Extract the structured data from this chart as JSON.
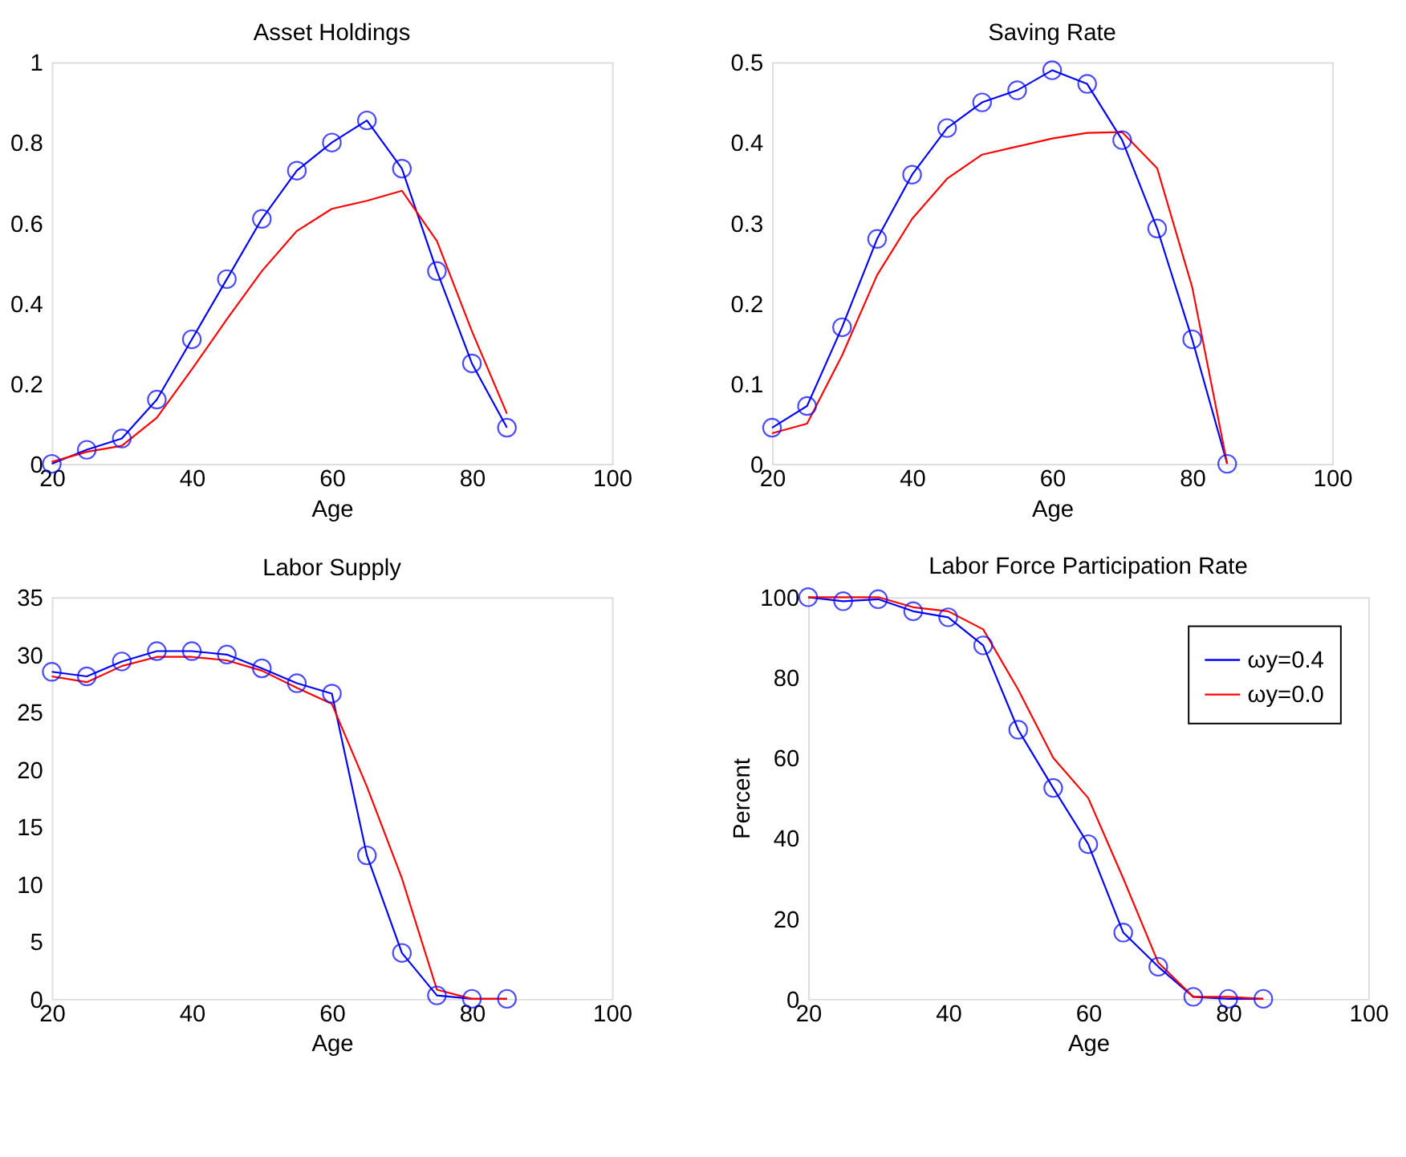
{
  "chart_data": [
    {
      "type": "line",
      "title": "Asset Holdings",
      "xlabel": "Age",
      "x": [
        20,
        25,
        30,
        35,
        40,
        45,
        50,
        55,
        60,
        65,
        70,
        75,
        80,
        85
      ],
      "xlim": [
        20,
        100
      ],
      "xticks": [
        20,
        40,
        60,
        80,
        100
      ],
      "ylim": [
        0,
        1
      ],
      "yticks": [
        0,
        0.2,
        0.4,
        0.6,
        0.8,
        1
      ],
      "grid": false,
      "legend": false,
      "series": [
        {
          "color": "#0000ff",
          "marker": "circle",
          "values": [
            0,
            0.035,
            0.063,
            0.16,
            0.31,
            0.46,
            0.61,
            0.73,
            0.8,
            0.855,
            0.735,
            0.48,
            0.25,
            0.09
          ]
        },
        {
          "color": "#ff0000",
          "marker": "none",
          "values": [
            0.005,
            0.03,
            0.045,
            0.115,
            0.235,
            0.36,
            0.48,
            0.58,
            0.635,
            0.655,
            0.68,
            0.555,
            0.33,
            0.125
          ]
        }
      ]
    },
    {
      "type": "line",
      "title": "Saving Rate",
      "xlabel": "Age",
      "x": [
        20,
        25,
        30,
        35,
        40,
        45,
        50,
        55,
        60,
        65,
        70,
        75,
        80,
        85
      ],
      "xlim": [
        20,
        100
      ],
      "xticks": [
        20,
        40,
        60,
        80,
        100
      ],
      "ylim": [
        0,
        0.5
      ],
      "yticks": [
        0,
        0.1,
        0.2,
        0.3,
        0.4,
        0.5
      ],
      "grid": false,
      "legend": false,
      "series": [
        {
          "color": "#0000ff",
          "marker": "circle",
          "values": [
            0.045,
            0.072,
            0.17,
            0.28,
            0.36,
            0.418,
            0.45,
            0.465,
            0.49,
            0.473,
            0.403,
            0.293,
            0.155,
            0.0
          ]
        },
        {
          "color": "#ff0000",
          "marker": "none",
          "values": [
            0.038,
            0.05,
            0.135,
            0.235,
            0.305,
            0.355,
            0.385,
            0.395,
            0.405,
            0.412,
            0.413,
            0.368,
            0.22,
            0.0
          ]
        }
      ]
    },
    {
      "type": "line",
      "title": "Labor Supply",
      "xlabel": "Age",
      "x": [
        20,
        25,
        30,
        35,
        40,
        45,
        50,
        55,
        60,
        65,
        70,
        75,
        80,
        85
      ],
      "xlim": [
        20,
        100
      ],
      "xticks": [
        20,
        40,
        60,
        80,
        100
      ],
      "ylim": [
        0,
        35
      ],
      "yticks": [
        0,
        5,
        10,
        15,
        20,
        25,
        30,
        35
      ],
      "grid": false,
      "legend": false,
      "series": [
        {
          "color": "#0000ff",
          "marker": "circle",
          "values": [
            28.5,
            28.1,
            29.4,
            30.3,
            30.3,
            30.0,
            28.8,
            27.5,
            26.6,
            12.5,
            4.0,
            0.3,
            0.0,
            0.0
          ]
        },
        {
          "color": "#ff0000",
          "marker": "none",
          "values": [
            28.1,
            27.6,
            29.0,
            29.8,
            29.8,
            29.5,
            28.6,
            27.1,
            25.7,
            18.5,
            10.5,
            0.8,
            0.0,
            0.0
          ]
        }
      ]
    },
    {
      "type": "line",
      "title": "Labor Force Participation Rate",
      "xlabel": "Age",
      "ylabel": "Percent",
      "x": [
        20,
        25,
        30,
        35,
        40,
        45,
        50,
        55,
        60,
        65,
        70,
        75,
        80,
        85
      ],
      "xlim": [
        20,
        100
      ],
      "xticks": [
        20,
        40,
        60,
        80,
        100
      ],
      "ylim": [
        0,
        100
      ],
      "yticks": [
        0,
        20,
        40,
        60,
        80,
        100
      ],
      "grid": false,
      "legend": "top right",
      "series": [
        {
          "name": "ωy=0.4",
          "color": "#0000ff",
          "marker": "circle",
          "values": [
            100,
            99,
            99.5,
            96.5,
            95,
            88,
            67,
            52.5,
            38.5,
            16.5,
            8,
            0.5,
            0,
            0
          ]
        },
        {
          "name": "ωy=0.0",
          "color": "#ff0000",
          "marker": "none",
          "values": [
            100,
            100,
            100,
            97.5,
            96.5,
            92,
            77,
            60,
            50,
            30,
            9,
            0.5,
            0.5,
            0
          ]
        }
      ]
    }
  ]
}
